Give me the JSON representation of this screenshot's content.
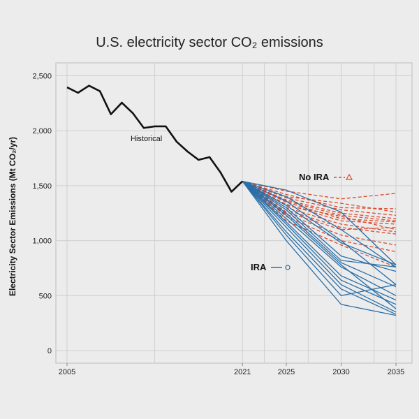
{
  "chart_data": {
    "type": "line",
    "title": "U.S. electricity sector CO₂ emissions",
    "xlabel": "",
    "ylabel": "Electricity Sector Emissions (Mt CO₂/yr)",
    "xlim": [
      2004,
      2036
    ],
    "ylim": [
      -100,
      2600
    ],
    "yticks": [
      0,
      500,
      1000,
      1500,
      2000,
      2500
    ],
    "ytick_labels": [
      "0",
      "500",
      "1,000",
      "1,500",
      "2,000",
      "2,500"
    ],
    "xticks": [
      2005,
      2021,
      2025,
      2030,
      2035
    ],
    "xtick_labels": [
      "2005",
      "2021",
      "2025",
      "2030",
      "2035"
    ],
    "x_gridlines": [
      2005,
      2013,
      2021,
      2023,
      2025,
      2027,
      2030,
      2033,
      2035
    ],
    "grid": true,
    "colors": {
      "historical": "#111111",
      "no_ira": "#d94a2c",
      "ira": "#2a6fa8"
    },
    "historical": {
      "name": "Historical",
      "x": [
        2005,
        2006,
        2007,
        2008,
        2009,
        2010,
        2011,
        2012,
        2013,
        2014,
        2015,
        2016,
        2017,
        2018,
        2019,
        2020,
        2021
      ],
      "y": [
        2395,
        2345,
        2410,
        2360,
        2150,
        2255,
        2160,
        2025,
        2040,
        2040,
        1900,
        1810,
        1735,
        1760,
        1620,
        1445,
        1540
      ]
    },
    "series": [
      {
        "name": "No IRA",
        "style": "dashed",
        "x": [
          2021,
          2025,
          2030,
          2035
        ],
        "runs": [
          [
            1540,
            1450,
            1380,
            1430
          ],
          [
            1540,
            1420,
            1300,
            1290
          ],
          [
            1540,
            1400,
            1340,
            1260
          ],
          [
            1540,
            1390,
            1280,
            1230
          ],
          [
            1540,
            1370,
            1250,
            1200
          ],
          [
            1540,
            1360,
            1230,
            1180
          ],
          [
            1540,
            1350,
            1200,
            1170
          ],
          [
            1540,
            1330,
            1180,
            1150
          ],
          [
            1540,
            1320,
            1220,
            1100
          ],
          [
            1540,
            1300,
            1150,
            1080
          ],
          [
            1540,
            1280,
            1120,
            1060
          ],
          [
            1540,
            1260,
            1100,
            1120
          ],
          [
            1540,
            1240,
            1050,
            960
          ],
          [
            1540,
            1220,
            1000,
            900
          ],
          [
            1540,
            1180,
            960,
            760
          ]
        ]
      },
      {
        "name": "IRA",
        "style": "solid",
        "x": [
          2021,
          2025,
          2030,
          2035
        ],
        "runs": [
          [
            1540,
            1460,
            1260,
            780
          ],
          [
            1540,
            1400,
            1100,
            760
          ],
          [
            1540,
            1360,
            1000,
            600
          ],
          [
            1540,
            1320,
            980,
            780
          ],
          [
            1540,
            1300,
            860,
            720
          ],
          [
            1540,
            1280,
            820,
            760
          ],
          [
            1540,
            1250,
            800,
            580
          ],
          [
            1540,
            1230,
            780,
            380
          ],
          [
            1540,
            1200,
            760,
            500
          ],
          [
            1540,
            1170,
            680,
            460
          ],
          [
            1540,
            1150,
            640,
            420
          ],
          [
            1540,
            1120,
            600,
            350
          ],
          [
            1540,
            1080,
            560,
            330
          ],
          [
            1540,
            1050,
            500,
            600
          ],
          [
            1540,
            1000,
            420,
            320
          ]
        ]
      }
    ],
    "annotations": [
      {
        "text": "Historical"
      },
      {
        "text": "No IRA"
      },
      {
        "text": "IRA"
      }
    ]
  }
}
